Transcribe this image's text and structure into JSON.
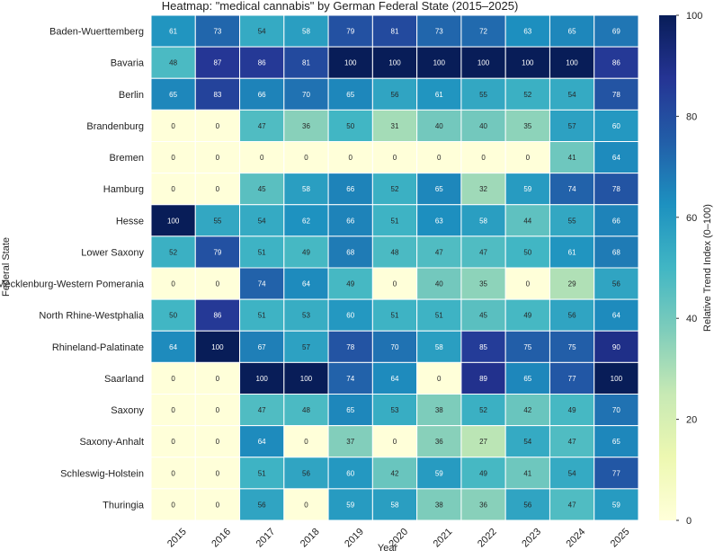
{
  "chart_data": {
    "type": "heatmap",
    "title": "Heatmap: \"medical cannabis\" by German Federal State (2015–2025)",
    "xlabel": "Year",
    "ylabel": "Federal State",
    "colorbar_label": "Relative Trend Index (0–100)",
    "colorbar_ticks": [
      0,
      20,
      40,
      60,
      80,
      100
    ],
    "value_range": [
      0,
      100
    ],
    "colormap": [
      "#ffffd9",
      "#edf8b1",
      "#c7e9b4",
      "#7fcdbb",
      "#41b6c4",
      "#1d91c0",
      "#225ea8",
      "#253494",
      "#081d58"
    ],
    "x": [
      "2015",
      "2016",
      "2017",
      "2018",
      "2019",
      "2020",
      "2021",
      "2022",
      "2023",
      "2024",
      "2025"
    ],
    "y": [
      "Baden-Wuerttemberg",
      "Bavaria",
      "Berlin",
      "Brandenburg",
      "Bremen",
      "Hamburg",
      "Hesse",
      "Lower Saxony",
      "Mecklenburg-Western Pomerania",
      "North Rhine-Westphalia",
      "Rhineland-Palatinate",
      "Saarland",
      "Saxony",
      "Saxony-Anhalt",
      "Schleswig-Holstein",
      "Thuringia"
    ],
    "values": [
      [
        61,
        73,
        54,
        58,
        79,
        81,
        73,
        72,
        63,
        65,
        69
      ],
      [
        48,
        87,
        86,
        81,
        100,
        100,
        100,
        100,
        100,
        100,
        86
      ],
      [
        65,
        83,
        66,
        70,
        65,
        56,
        61,
        55,
        52,
        54,
        78
      ],
      [
        0,
        0,
        47,
        36,
        50,
        31,
        40,
        40,
        35,
        57,
        60
      ],
      [
        0,
        0,
        0,
        0,
        0,
        0,
        0,
        0,
        0,
        41,
        64
      ],
      [
        0,
        0,
        45,
        58,
        66,
        52,
        65,
        32,
        59,
        74,
        78
      ],
      [
        100,
        55,
        54,
        62,
        66,
        51,
        63,
        58,
        44,
        55,
        66
      ],
      [
        52,
        79,
        51,
        49,
        68,
        48,
        47,
        47,
        50,
        61,
        68
      ],
      [
        0,
        0,
        74,
        64,
        49,
        0,
        40,
        35,
        0,
        29,
        56
      ],
      [
        50,
        86,
        51,
        53,
        60,
        51,
        51,
        45,
        49,
        56,
        64
      ],
      [
        64,
        100,
        67,
        57,
        78,
        70,
        58,
        85,
        75,
        75,
        90
      ],
      [
        0,
        0,
        100,
        100,
        74,
        64,
        0,
        89,
        65,
        77,
        100
      ],
      [
        0,
        0,
        47,
        48,
        65,
        53,
        38,
        52,
        42,
        49,
        70
      ],
      [
        0,
        0,
        64,
        0,
        37,
        0,
        36,
        27,
        54,
        47,
        65
      ],
      [
        0,
        0,
        51,
        56,
        60,
        42,
        59,
        49,
        41,
        54,
        77
      ],
      [
        0,
        0,
        56,
        0,
        59,
        58,
        38,
        36,
        56,
        47,
        59
      ]
    ]
  }
}
